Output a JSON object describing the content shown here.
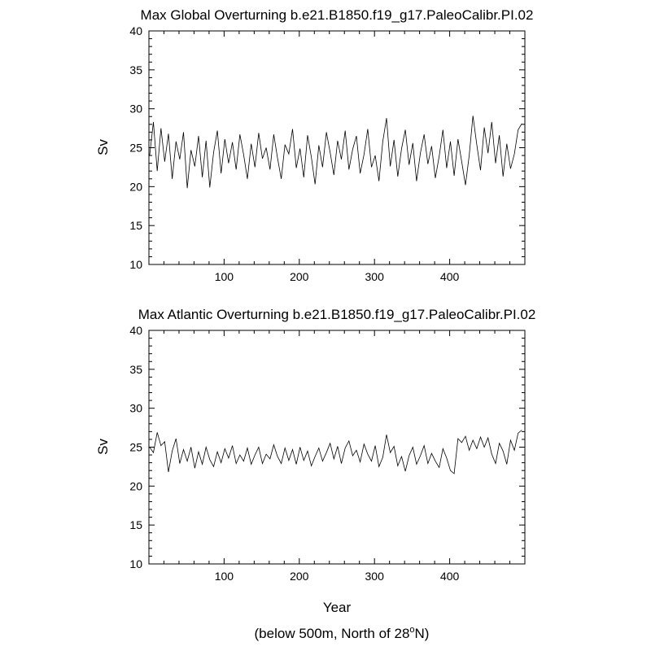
{
  "chart_data": [
    {
      "type": "line",
      "title": "Max Global Overturning b.e21.B1850.f19_g17.PaleoCalibr.PI.02",
      "xlabel": "",
      "ylabel": "Sv",
      "xlim": [
        0,
        500
      ],
      "ylim": [
        10,
        40
      ],
      "xticks": [
        100,
        200,
        300,
        400
      ],
      "yticks": [
        10,
        15,
        20,
        25,
        30,
        35,
        40
      ],
      "grid": false,
      "series": [
        {
          "x": [
            1,
            6,
            11,
            16,
            21,
            26,
            31,
            36,
            41,
            46,
            51,
            56,
            61,
            66,
            71,
            76,
            81,
            86,
            91,
            96,
            101,
            106,
            111,
            116,
            121,
            126,
            131,
            136,
            141,
            146,
            151,
            156,
            161,
            166,
            171,
            176,
            181,
            186,
            191,
            196,
            201,
            206,
            211,
            216,
            221,
            226,
            231,
            236,
            241,
            246,
            251,
            256,
            261,
            266,
            271,
            276,
            281,
            286,
            291,
            296,
            301,
            306,
            311,
            316,
            321,
            326,
            331,
            336,
            341,
            346,
            351,
            356,
            361,
            366,
            371,
            376,
            381,
            386,
            391,
            396,
            401,
            406,
            411,
            416,
            421,
            426,
            431,
            436,
            441,
            446,
            451,
            456,
            461,
            466,
            471,
            476,
            481,
            486,
            491,
            496
          ],
          "y": [
            24.0,
            28.3,
            22.0,
            27.5,
            23.2,
            26.8,
            21.0,
            25.8,
            23.5,
            27.0,
            19.8,
            24.7,
            22.6,
            26.5,
            21.2,
            25.9,
            19.9,
            24.4,
            27.2,
            21.7,
            26.1,
            23.0,
            25.7,
            22.2,
            26.7,
            24.1,
            21.0,
            25.5,
            22.5,
            26.9,
            23.6,
            25.0,
            22.2,
            26.7,
            23.7,
            21.0,
            25.4,
            24.2,
            27.4,
            22.4,
            24.9,
            21.2,
            26.6,
            23.8,
            20.3,
            25.3,
            22.5,
            27.0,
            24.4,
            21.5,
            25.9,
            23.5,
            27.2,
            22.2,
            24.8,
            26.5,
            21.7,
            24.1,
            27.4,
            22.5,
            24.0,
            20.7,
            25.8,
            28.8,
            22.6,
            26.0,
            21.3,
            24.9,
            27.3,
            22.8,
            25.6,
            20.7,
            24.3,
            26.7,
            22.9,
            25.2,
            21.1,
            23.9,
            27.3,
            22.4,
            25.8,
            21.4,
            26.1,
            23.2,
            20.2,
            24.0,
            29.1,
            25.4,
            22.1,
            27.6,
            24.3,
            28.3,
            23.0,
            26.6,
            21.3,
            25.5,
            22.3,
            24.2,
            27.3,
            28.1
          ]
        }
      ]
    },
    {
      "type": "line",
      "title": "Max Atlantic Overturning b.e21.B1850.f19_g17.PaleoCalibr.PI.02",
      "xlabel": "Year",
      "ylabel": "Sv",
      "xlim": [
        0,
        500
      ],
      "ylim": [
        10,
        40
      ],
      "xticks": [
        100,
        200,
        300,
        400
      ],
      "yticks": [
        10,
        15,
        20,
        25,
        30,
        35,
        40
      ],
      "grid": false,
      "series": [
        {
          "x": [
            1,
            6,
            11,
            16,
            21,
            26,
            31,
            36,
            41,
            46,
            51,
            56,
            61,
            66,
            71,
            76,
            81,
            86,
            91,
            96,
            101,
            106,
            111,
            116,
            121,
            126,
            131,
            136,
            141,
            146,
            151,
            156,
            161,
            166,
            171,
            176,
            181,
            186,
            191,
            196,
            201,
            206,
            211,
            216,
            221,
            226,
            231,
            236,
            241,
            246,
            251,
            256,
            261,
            266,
            271,
            276,
            281,
            286,
            291,
            296,
            301,
            306,
            311,
            316,
            321,
            326,
            331,
            336,
            341,
            346,
            351,
            356,
            361,
            366,
            371,
            376,
            381,
            386,
            391,
            396,
            401,
            406,
            411,
            416,
            421,
            426,
            431,
            436,
            441,
            446,
            451,
            456,
            461,
            466,
            471,
            476,
            481,
            486,
            491,
            496
          ],
          "y": [
            25.0,
            24.3,
            26.9,
            25.2,
            25.7,
            21.8,
            24.5,
            26.1,
            22.9,
            24.7,
            23.2,
            25.0,
            22.3,
            24.4,
            22.8,
            25.0,
            23.4,
            22.5,
            24.4,
            23.0,
            24.8,
            23.6,
            25.2,
            22.9,
            24.0,
            23.2,
            24.9,
            22.8,
            24.0,
            25.0,
            22.9,
            24.1,
            23.5,
            25.3,
            23.8,
            22.9,
            24.9,
            23.3,
            24.7,
            22.8,
            25.0,
            23.3,
            24.5,
            22.6,
            23.8,
            24.9,
            23.2,
            24.3,
            25.5,
            23.5,
            25.1,
            22.9,
            24.9,
            25.8,
            23.9,
            24.6,
            23.1,
            25.4,
            24.1,
            23.2,
            25.2,
            22.5,
            23.7,
            26.6,
            24.3,
            25.1,
            22.6,
            23.8,
            21.9,
            23.9,
            25.0,
            22.8,
            23.9,
            25.2,
            22.9,
            24.2,
            23.2,
            22.4,
            24.8,
            23.6,
            22.0,
            21.6,
            26.1,
            25.6,
            26.4,
            24.6,
            25.9,
            24.8,
            26.3,
            25.0,
            26.2,
            24.1,
            22.9,
            25.5,
            24.5,
            22.8,
            25.9,
            24.6,
            26.8,
            27.2
          ]
        }
      ]
    }
  ],
  "footer": {
    "note_prefix": "(below 500m, North of 28",
    "note_superscript": "o",
    "note_suffix": "N)"
  }
}
